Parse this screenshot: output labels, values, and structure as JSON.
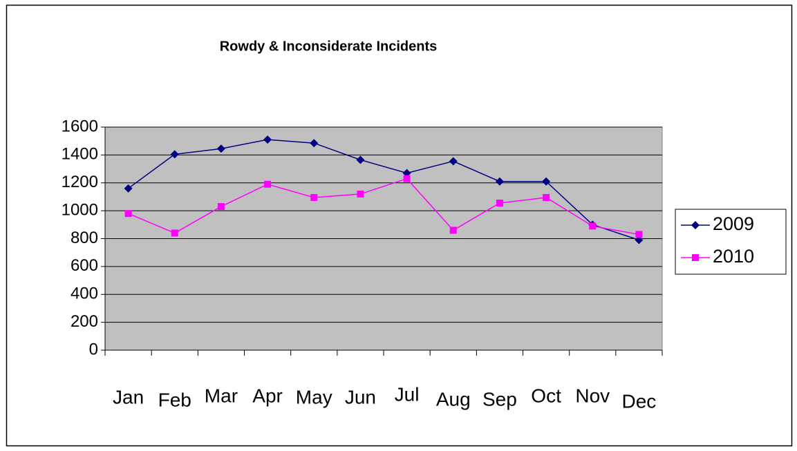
{
  "chart_data": {
    "type": "line",
    "title": "Rowdy & Inconsiderate Incidents",
    "categories": [
      "Jan",
      "Feb",
      "Mar",
      "Apr",
      "May",
      "Jun",
      "Jul",
      "Aug",
      "Sep",
      "Oct",
      "Nov",
      "Dec"
    ],
    "series": [
      {
        "name": "2009",
        "color": "#000080",
        "values": [
          1160,
          1405,
          1445,
          1510,
          1485,
          1365,
          1270,
          1355,
          1210,
          1210,
          900,
          790
        ]
      },
      {
        "name": "2010",
        "color": "#ff00ff",
        "values": [
          980,
          840,
          1030,
          1190,
          1095,
          1120,
          1230,
          860,
          1055,
          1095,
          890,
          830
        ]
      }
    ],
    "ylim": [
      0,
      1600
    ],
    "yticks": [
      0,
      200,
      400,
      600,
      800,
      1000,
      1200,
      1400,
      1600
    ],
    "grid": true,
    "legend": "right"
  }
}
